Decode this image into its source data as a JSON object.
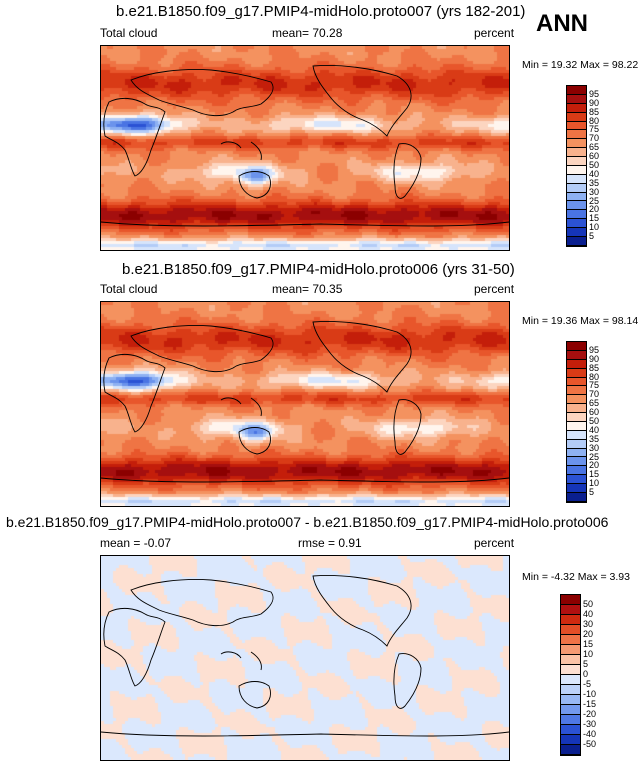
{
  "season": "ANN",
  "chart_data": [
    {
      "type": "heatmap",
      "title": "b.e21.B1850.f09_g17.PMIP4-midHolo.proto007 (yrs 182-201)",
      "variable": "Total cloud",
      "mean_text": "mean=  70.28",
      "units": "percent",
      "min_max_text": "Min =  19.32 Max =  98.22",
      "levels": [
        "95",
        "90",
        "85",
        "80",
        "75",
        "70",
        "65",
        "60",
        "50",
        "40",
        "35",
        "30",
        "25",
        "20",
        "15",
        "10",
        "5"
      ]
    },
    {
      "type": "heatmap",
      "title": "b.e21.B1850.f09_g17.PMIP4-midHolo.proto006 (yrs 31-50)",
      "variable": "Total cloud",
      "mean_text": "mean=  70.35",
      "units": "percent",
      "min_max_text": "Min =  19.36 Max =  98.14",
      "levels": [
        "95",
        "90",
        "85",
        "80",
        "75",
        "70",
        "65",
        "60",
        "50",
        "40",
        "35",
        "30",
        "25",
        "20",
        "15",
        "10",
        "5"
      ]
    },
    {
      "type": "heatmap",
      "title": "b.e21.B1850.f09_g17.PMIP4-midHolo.proto007 - b.e21.B1850.f09_g17.PMIP4-midHolo.proto006",
      "mean_text": "mean =  -0.07",
      "rmse_text": "rmse =   0.91",
      "units": "percent",
      "min_max_text": "Min =  -4.32 Max =   3.93",
      "levels": [
        "50",
        "40",
        "30",
        "20",
        "15",
        "10",
        "5",
        "0",
        "-5",
        "-10",
        "-15",
        "-20",
        "-30",
        "-40",
        "-50"
      ]
    }
  ],
  "colors": {
    "abs_scale": [
      "#8b0000",
      "#a50f0f",
      "#c41e0a",
      "#d93b16",
      "#e8562b",
      "#ef7444",
      "#f4925f",
      "#f8b28d",
      "#fcd5c0",
      "#fff5ee",
      "#d6e4fb",
      "#b3ccf7",
      "#8eb1f2",
      "#6b93ec",
      "#4a74e3",
      "#2b52d4",
      "#1535b8",
      "#0a1f8f"
    ],
    "diff_scale": [
      "#8b0000",
      "#b01010",
      "#cf2a10",
      "#e34e27",
      "#ef7347",
      "#f59a72",
      "#fbc3a6",
      "#fde0d2",
      "#dbe8fd",
      "#bcd2f9",
      "#98b8f4",
      "#7399ee",
      "#4f78e5",
      "#2b52d4",
      "#1535b8",
      "#0a1f8f"
    ]
  }
}
